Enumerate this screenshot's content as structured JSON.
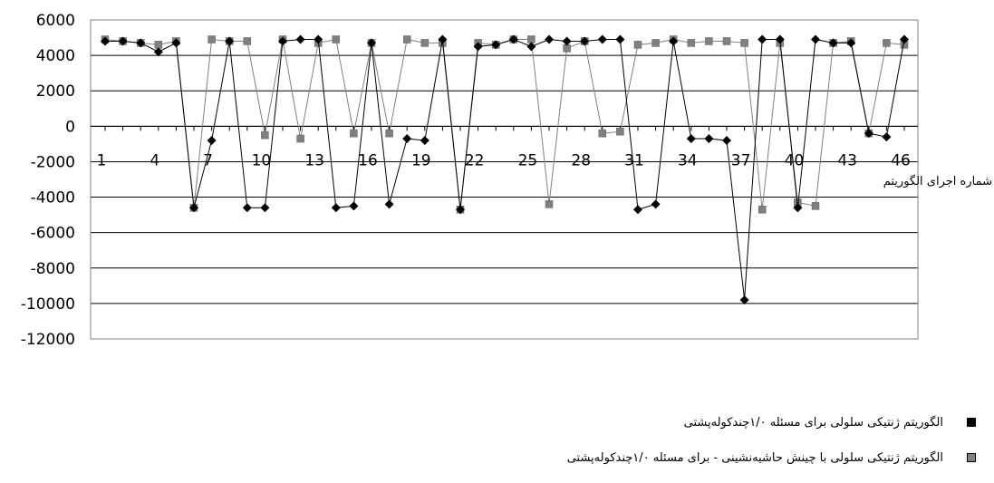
{
  "chart_data": {
    "type": "line",
    "title": "",
    "xlabel": "شماره اجرای الگوریتم",
    "ylabel": "",
    "ylim": [
      -12000,
      6000
    ],
    "yticks": [
      "6000",
      "4000",
      "2000",
      "0",
      "-2000",
      "-4000",
      "-6000",
      "-8000",
      "-10000",
      "-12000"
    ],
    "xticks": [
      "1",
      "4",
      "7",
      "10",
      "13",
      "16",
      "19",
      "22",
      "25",
      "28",
      "31",
      "34",
      "37",
      "40",
      "43",
      "46"
    ],
    "grid": true,
    "legend_position": "bottom-right",
    "x": [
      1,
      2,
      3,
      4,
      5,
      6,
      7,
      8,
      9,
      10,
      11,
      12,
      13,
      14,
      15,
      16,
      17,
      18,
      19,
      20,
      21,
      22,
      23,
      24,
      25,
      26,
      27,
      28,
      29,
      30,
      31,
      32,
      33,
      34,
      35,
      36,
      37,
      38,
      39,
      40,
      41,
      42,
      43,
      44,
      45,
      46
    ],
    "series": [
      {
        "name": "الگوریتم ژنتیکی سلولی برای مسئله ۱/۰چندکوله‌پشتی",
        "color": "#000000",
        "marker": "diamond",
        "values": [
          4800,
          4800,
          4700,
          4200,
          4700,
          -4600,
          -800,
          4800,
          -4600,
          -4600,
          4800,
          4900,
          4900,
          -4600,
          -4500,
          4700,
          -4400,
          -700,
          -800,
          4900,
          -4700,
          4500,
          4600,
          4900,
          4500,
          4900,
          4800,
          4800,
          4900,
          4900,
          -4700,
          -4400,
          4800,
          -700,
          -700,
          -800,
          -9800,
          4900,
          4900,
          -4600,
          4900,
          4700,
          4700,
          -400,
          -600,
          4900
        ]
      },
      {
        "name": "الگوریتم ژنتیکی سلولی با چینش حاشیه‌نشینی - برای مسئله ۱/۰چندکوله‌پشتی",
        "color": "#808080",
        "marker": "square",
        "values": [
          4900,
          4800,
          4700,
          4600,
          4800,
          -4600,
          4900,
          4800,
          4800,
          -500,
          4900,
          -700,
          4700,
          4900,
          -400,
          4700,
          -400,
          4900,
          4700,
          4700,
          -4700,
          4700,
          4600,
          4900,
          4900,
          -4400,
          4400,
          4800,
          -400,
          -300,
          4600,
          4700,
          4900,
          4700,
          4800,
          4800,
          4700,
          -4700,
          4700,
          -4300,
          -4500,
          4700,
          4800,
          -400,
          4700,
          4600
        ]
      }
    ]
  }
}
